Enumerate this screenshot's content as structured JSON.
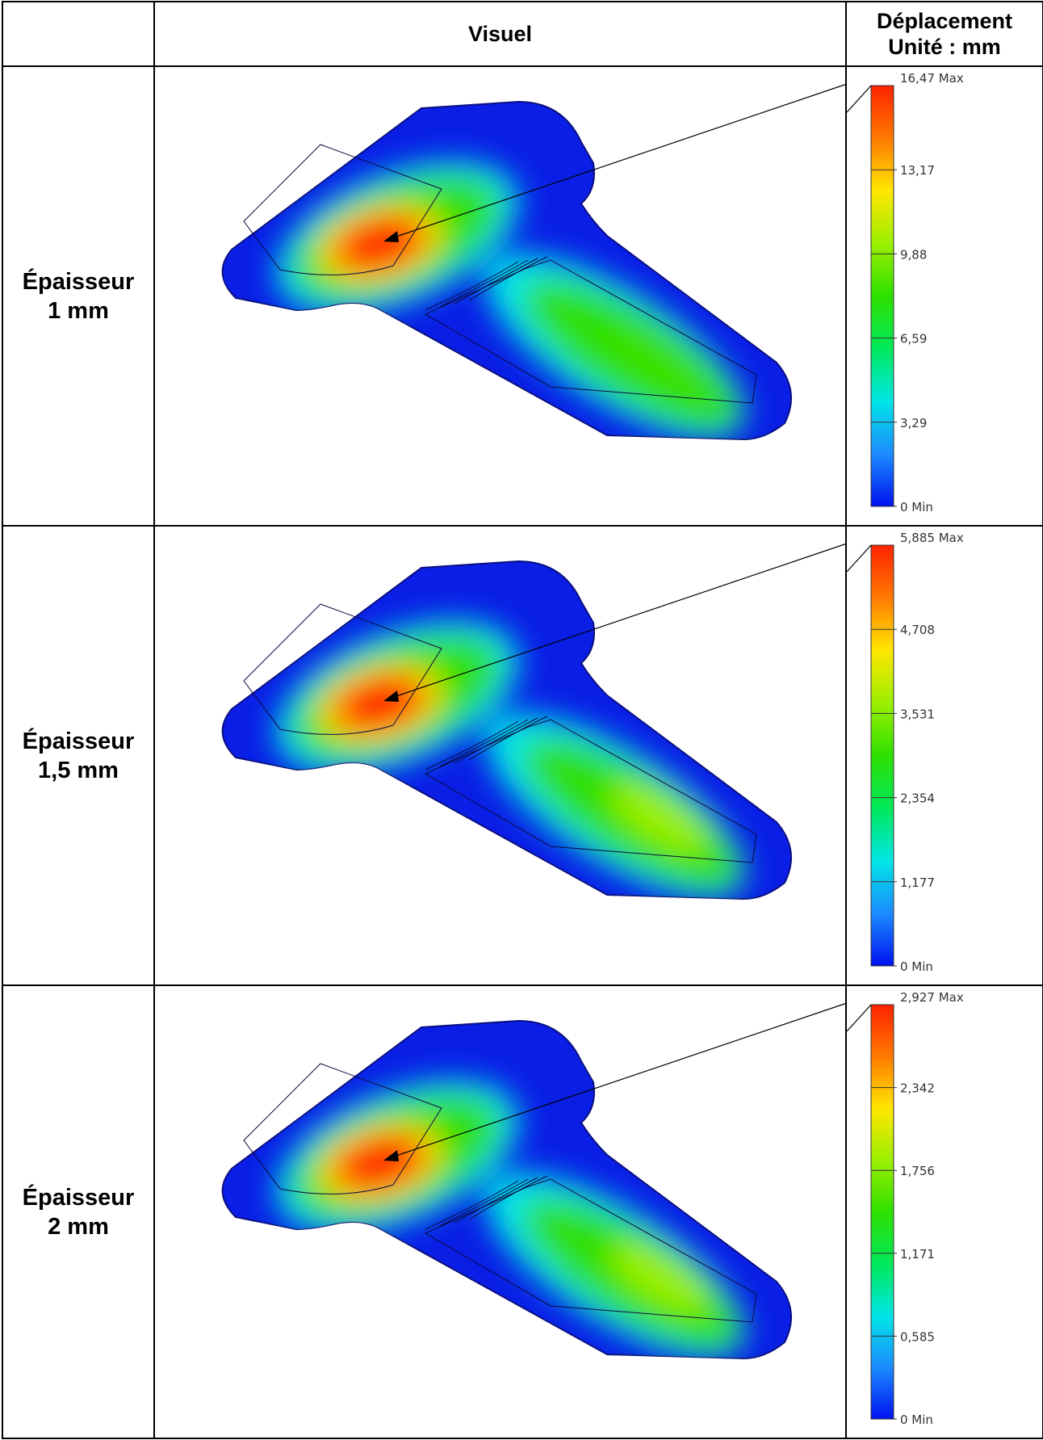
{
  "header": {
    "col1": "",
    "col2": "Visuel",
    "col3_line1": "Déplacement",
    "col3_line2": "Unité : mm"
  },
  "rows": [
    {
      "label_line1": "Épaisseur",
      "label_line2": "1 mm",
      "legend": [
        "16,47 Max",
        "13,17",
        "9,88",
        "6,59",
        "3,29",
        "0 Min"
      ]
    },
    {
      "label_line1": "Épaisseur",
      "label_line2": "1,5 mm",
      "legend": [
        "5,885 Max",
        "4,708",
        "3,531",
        "2,354",
        "1,177",
        "0 Min"
      ]
    },
    {
      "label_line1": "Épaisseur",
      "label_line2": "2 mm",
      "legend": [
        "2,927 Max",
        "2,342",
        "1,756",
        "1,171",
        "0,585",
        "0 Min"
      ]
    }
  ],
  "colors": {
    "plate": "#0a1ee6",
    "max": "#ff1a00",
    "scale": [
      "#ff2200",
      "#ff7a00",
      "#ffe600",
      "#9cef00",
      "#2ee000",
      "#00e85a",
      "#00e6e6",
      "#1c8cff",
      "#0012f0"
    ]
  }
}
